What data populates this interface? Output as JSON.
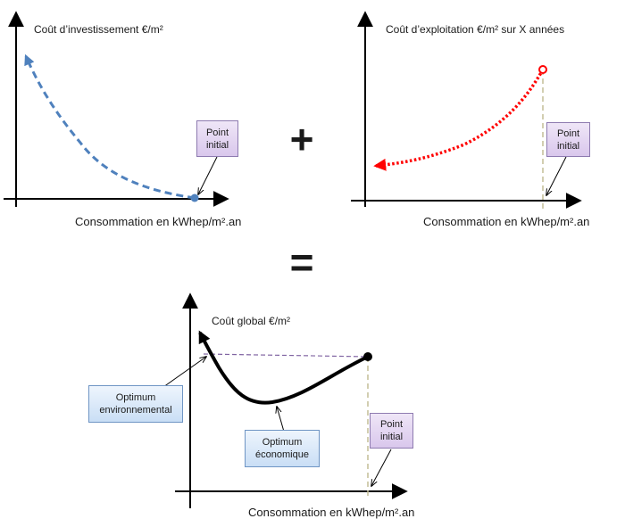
{
  "charts": {
    "investment": {
      "ylabel": "Coût d’investissement €/m²",
      "xlabel": "Consommation en kWhep/m².an",
      "callout": {
        "line1": "Point",
        "line2": "initial"
      },
      "curve_color": "#4f81bd"
    },
    "operation": {
      "ylabel": "Coût d’exploitation €/m² sur X années",
      "xlabel": "Consommation en kWhep/m².an",
      "callout": {
        "line1": "Point",
        "line2": "initial"
      },
      "curve_color": "#ff0000"
    },
    "global": {
      "ylabel": "Coût global €/m²",
      "xlabel": "Consommation en kWhep/m².an",
      "callout_initial": {
        "line1": "Point",
        "line2": "initial"
      },
      "callout_env": {
        "line1": "Optimum",
        "line2": "environnemental"
      },
      "callout_eco": {
        "line1": "Optimum",
        "line2": "économique"
      },
      "curve_color": "#000000",
      "reference_line_color": "#8064a2"
    }
  },
  "operators": {
    "plus": "+",
    "equals": "="
  }
}
